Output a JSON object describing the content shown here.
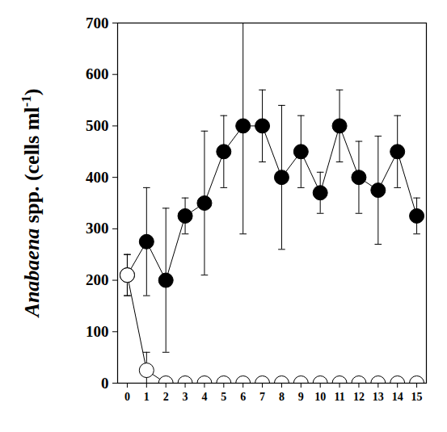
{
  "chart_data": {
    "type": "line",
    "y_label": "Anabaena spp. (cells ml-1)",
    "x": [
      0,
      1,
      2,
      3,
      4,
      5,
      6,
      7,
      8,
      9,
      10,
      11,
      12,
      13,
      14,
      15
    ],
    "xlim": [
      -0.5,
      15.5
    ],
    "xticks": [
      0,
      1,
      2,
      3,
      4,
      5,
      6,
      7,
      8,
      9,
      10,
      11,
      12,
      13,
      14,
      15
    ],
    "ylim": [
      0,
      700
    ],
    "yticks": [
      0,
      100,
      200,
      300,
      400,
      500,
      600,
      700
    ],
    "series": [
      {
        "color": "#000000",
        "marker": "circle",
        "line_style": "solid",
        "values": [
          210,
          275,
          200,
          325,
          350,
          450,
          500,
          500,
          400,
          450,
          370,
          500,
          400,
          375,
          450,
          325
        ],
        "errors": [
          40,
          105,
          140,
          35,
          140,
          70,
          210,
          70,
          140,
          70,
          40,
          70,
          70,
          105,
          70,
          35
        ]
      },
      {
        "color": "#000000",
        "marker": "open-circle",
        "line_style": "solid",
        "values": [
          210,
          25,
          0,
          0,
          0,
          0,
          0,
          0,
          0,
          0,
          0,
          0,
          0,
          0,
          0,
          0
        ],
        "errors": [
          40,
          35,
          0,
          0,
          0,
          0,
          0,
          0,
          0,
          0,
          0,
          0,
          0,
          0,
          0,
          0
        ]
      }
    ]
  }
}
